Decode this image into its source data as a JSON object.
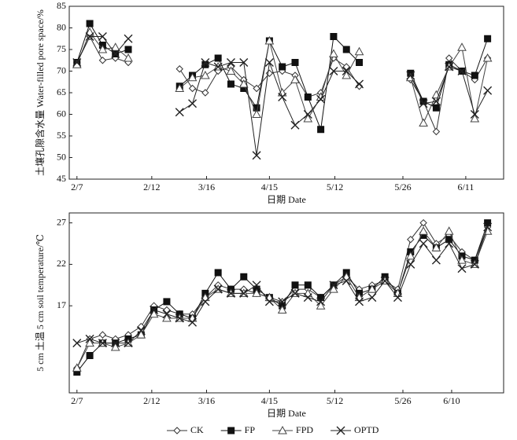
{
  "chart_data": [
    {
      "type": "line",
      "y_label": "土壤孔隙含水量 Water-filled pore space/%",
      "x_label": "日期 Date",
      "x": [
        0,
        1,
        2,
        3,
        4,
        5,
        6,
        7,
        8,
        9,
        10,
        11,
        12,
        13,
        14,
        15,
        16,
        17,
        18,
        19,
        20,
        21,
        22,
        23,
        24,
        25,
        26,
        27,
        28,
        29,
        30,
        31,
        32
      ],
      "xlim": [
        -0.6,
        33.25
      ],
      "xticks": [
        {
          "value": 0,
          "label": "2/7"
        },
        {
          "value": 5.83,
          "label": "2/12"
        },
        {
          "value": 10.1,
          "label": "3/16"
        },
        {
          "value": 15.0,
          "label": "4/15"
        },
        {
          "value": 20.1,
          "label": "5/12"
        },
        {
          "value": 25.4,
          "label": "5/26"
        },
        {
          "value": 30.3,
          "label": "6/11"
        }
      ],
      "ylim": [
        45,
        85
      ],
      "yticks": [
        45,
        50,
        55,
        60,
        65,
        70,
        75,
        80,
        85
      ],
      "series": [
        {
          "name": "CK",
          "color": "#333333",
          "marker": "diamond",
          "values": [
            72,
            78,
            72.5,
            73,
            72,
            null,
            null,
            null,
            70.5,
            66,
            65,
            70,
            71,
            68,
            66,
            69.5,
            70,
            69,
            64,
            65,
            73,
            71,
            66.5,
            null,
            null,
            null,
            68,
            63,
            56,
            73,
            70,
            68,
            73
          ]
        },
        {
          "name": "FP",
          "color": "#111111",
          "marker": "square",
          "values": [
            72,
            81,
            76,
            74,
            75,
            null,
            null,
            null,
            66.5,
            69,
            71.5,
            73,
            67,
            66,
            61.5,
            77,
            71,
            72,
            64,
            56.5,
            78,
            75,
            72,
            null,
            null,
            null,
            69.5,
            63,
            61.5,
            71.5,
            70,
            69,
            77.5
          ]
        },
        {
          "name": "FPD",
          "color": "#444444",
          "marker": "triangle",
          "values": [
            71.5,
            79,
            75,
            75.5,
            73,
            null,
            null,
            null,
            66,
            68.5,
            69,
            71,
            70,
            67,
            60,
            77,
            65,
            68,
            59,
            64,
            74,
            69,
            74.5,
            null,
            null,
            null,
            68.5,
            58,
            64.5,
            71,
            75.5,
            59,
            73
          ]
        },
        {
          "name": "OPTD",
          "color": "#222222",
          "marker": "x",
          "values": [
            72,
            78,
            78,
            74,
            77.5,
            null,
            null,
            null,
            60.5,
            62.5,
            72,
            71,
            72,
            72,
            50.5,
            72,
            64,
            57.5,
            60,
            63.5,
            70,
            70,
            67,
            null,
            null,
            null,
            69,
            62.5,
            63,
            71,
            70,
            60,
            65.5
          ]
        }
      ]
    },
    {
      "type": "line",
      "y_label": "5 cm 土温 5 cm soil temperature/℃",
      "x_label": "日期 Date",
      "legend": "bottom",
      "x": [
        0,
        1,
        2,
        3,
        4,
        5,
        6,
        7,
        8,
        9,
        10,
        11,
        12,
        13,
        14,
        15,
        16,
        17,
        18,
        19,
        20,
        21,
        22,
        23,
        24,
        25,
        26,
        27,
        28,
        29,
        30,
        31,
        32
      ],
      "xlim": [
        -0.6,
        33.25
      ],
      "xticks": [
        {
          "value": 0,
          "label": "2/7"
        },
        {
          "value": 5.83,
          "label": "2/12"
        },
        {
          "value": 10.1,
          "label": "3/16"
        },
        {
          "value": 15.0,
          "label": "4/15"
        },
        {
          "value": 20.1,
          "label": "5/12"
        },
        {
          "value": 25.4,
          "label": "5/26"
        },
        {
          "value": 29.2,
          "label": "6/10"
        }
      ],
      "ylim": [
        6.5,
        28.2
      ],
      "yticks": [
        17,
        22,
        27
      ],
      "series": [
        {
          "name": "CK",
          "color": "#333333",
          "marker": "diamond",
          "values": [
            9.5,
            13,
            13.5,
            13,
            13.5,
            14.5,
            17,
            16.5,
            16,
            16,
            18,
            19.5,
            19,
            19,
            18.5,
            18,
            17.5,
            19,
            19,
            18,
            19.5,
            20.5,
            19,
            19.5,
            20,
            19,
            25,
            27,
            24.5,
            25.5,
            23.5,
            22.5,
            26.5
          ]
        },
        {
          "name": "FP",
          "color": "#111111",
          "marker": "square",
          "values": [
            9,
            11,
            12.5,
            12.5,
            13,
            13.5,
            16.5,
            17.5,
            16,
            15.5,
            18.5,
            21,
            19,
            20.5,
            19,
            18,
            17,
            19.5,
            19.5,
            18,
            19.5,
            21,
            18.5,
            19,
            20.5,
            18.5,
            23.5,
            25.5,
            24,
            25,
            23,
            22.5,
            27
          ]
        },
        {
          "name": "FPD",
          "color": "#444444",
          "marker": "triangle",
          "values": [
            9.5,
            12.5,
            12.5,
            12,
            12.5,
            13.5,
            16,
            15.5,
            15.5,
            15.5,
            18,
            19,
            18.5,
            18.5,
            18.5,
            18,
            16.5,
            18.5,
            18.5,
            17,
            19,
            20.5,
            18,
            19,
            20,
            18.5,
            23,
            26,
            24,
            26,
            22.5,
            22,
            26
          ]
        },
        {
          "name": "OPTD",
          "color": "#222222",
          "marker": "x",
          "values": [
            12.5,
            13,
            12.5,
            12.5,
            12.5,
            14,
            16.5,
            16,
            15.5,
            15,
            17.5,
            19,
            18.5,
            18.5,
            19.5,
            17.5,
            17.5,
            18.5,
            18,
            17.5,
            19.5,
            20,
            17.5,
            18,
            20,
            18,
            22,
            24.5,
            22.5,
            24.5,
            21.5,
            22,
            26.5
          ]
        }
      ]
    }
  ]
}
